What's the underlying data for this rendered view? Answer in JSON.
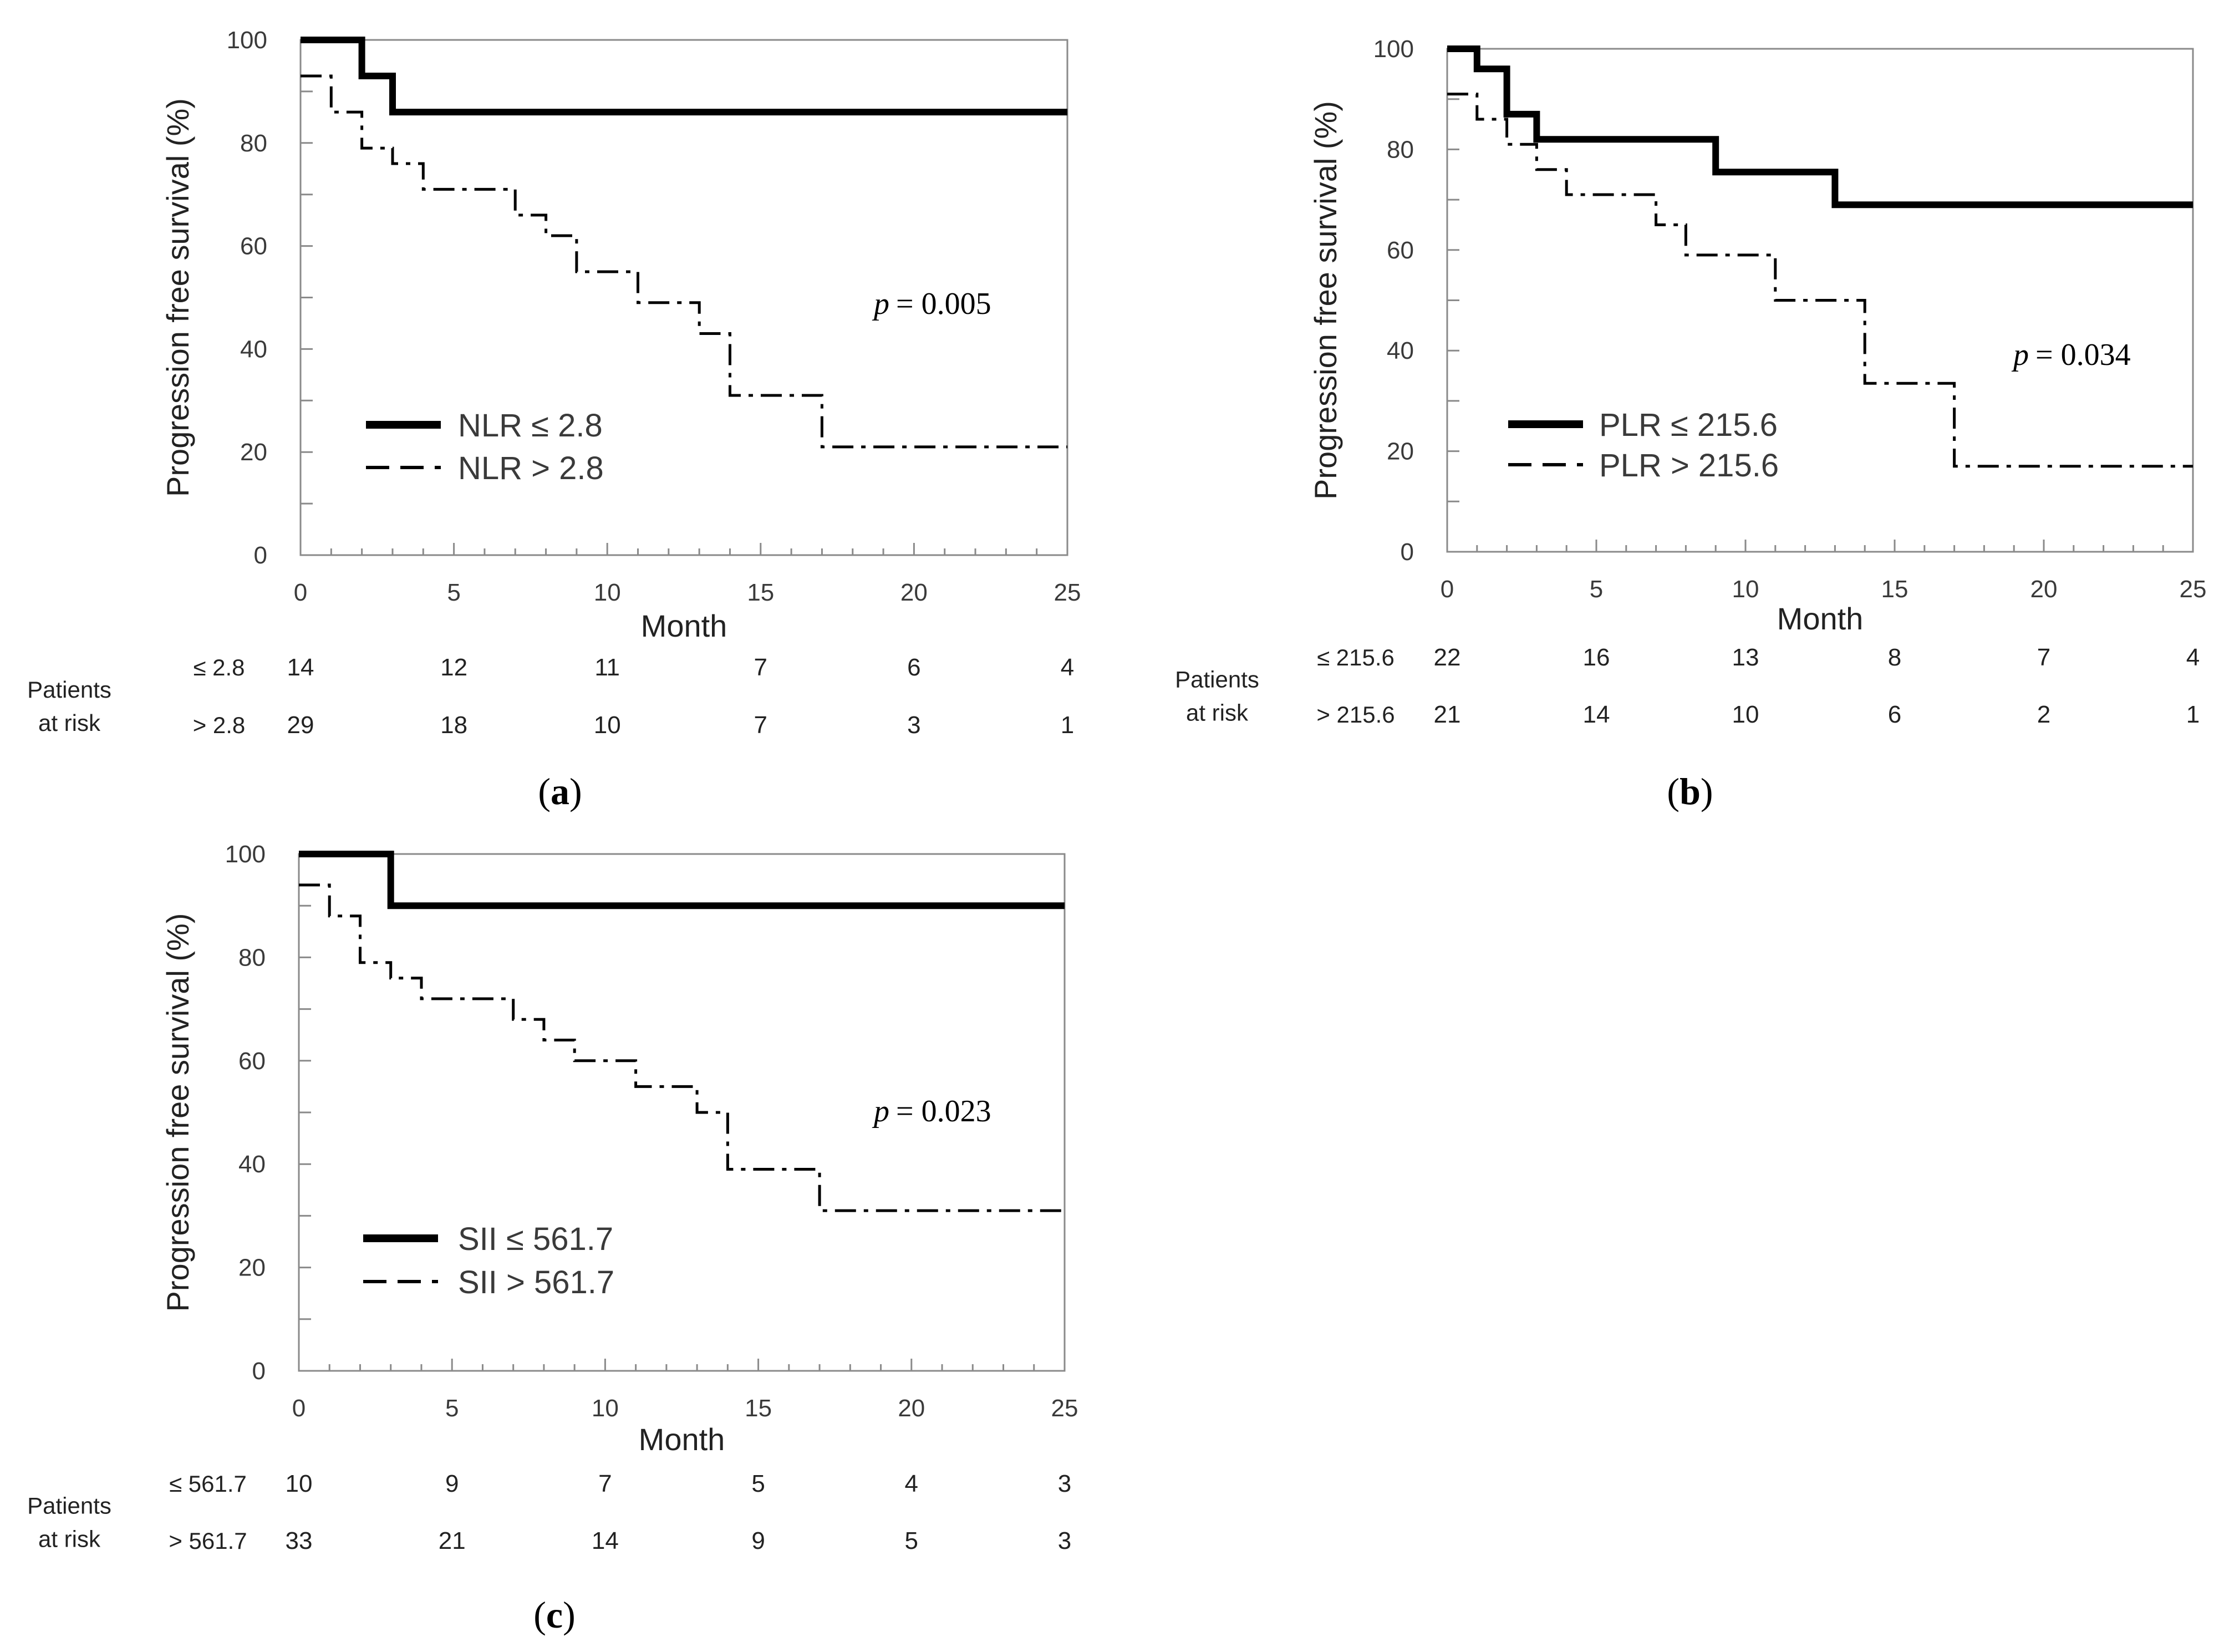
{
  "chart_data": [
    {
      "type": "line",
      "panel_label": "(a)",
      "ylabel": "Progression free survival (%)",
      "xlabel": "Month",
      "xlim": [
        0,
        25
      ],
      "ylim": [
        0,
        100
      ],
      "x_ticks": [
        "0",
        "5",
        "10",
        "15",
        "20",
        "25"
      ],
      "y_ticks": [
        "0",
        "20",
        "40",
        "60",
        "80",
        "100"
      ],
      "p_prefix": "p",
      "p_text": "= 0.005",
      "series": [
        {
          "name": "NLR ≤ 2.8",
          "style": "solid",
          "x": [
            0,
            2,
            2,
            3,
            3,
            25
          ],
          "y": [
            100,
            100,
            93,
            93,
            86,
            86
          ]
        },
        {
          "name": "NLR > 2.8",
          "style": "dashdot",
          "x": [
            0,
            1,
            1,
            2,
            2,
            3,
            3,
            4,
            4,
            7,
            7,
            8,
            8,
            9,
            9,
            11,
            11,
            13,
            13,
            14,
            14,
            17,
            17,
            25
          ],
          "y": [
            93,
            93,
            86,
            86,
            79,
            79,
            76,
            76,
            71,
            71,
            66,
            66,
            62,
            62,
            55,
            55,
            49,
            49,
            43,
            43,
            31,
            31,
            21,
            21
          ]
        }
      ],
      "risk_table": {
        "title_line1": "Patients",
        "title_line2": "at risk",
        "rows": [
          {
            "label": "≤ 2.8",
            "values": [
              "14",
              "12",
              "11",
              "7",
              "6",
              "4"
            ]
          },
          {
            "label": "> 2.8",
            "values": [
              "29",
              "18",
              "10",
              "7",
              "3",
              "1"
            ]
          }
        ]
      }
    },
    {
      "type": "line",
      "panel_label": "(b)",
      "ylabel": "Progression free survival (%)",
      "xlabel": "Month",
      "xlim": [
        0,
        25
      ],
      "ylim": [
        0,
        100
      ],
      "x_ticks": [
        "0",
        "5",
        "10",
        "15",
        "20",
        "25"
      ],
      "y_ticks": [
        "0",
        "20",
        "40",
        "60",
        "80",
        "100"
      ],
      "p_prefix": "p",
      "p_text": "= 0.034",
      "series": [
        {
          "name": "PLR ≤ 215.6",
          "style": "solid",
          "x": [
            0,
            1,
            1,
            2,
            2,
            3,
            3,
            9,
            9,
            13,
            13,
            25
          ],
          "y": [
            100,
            100,
            96,
            96,
            87,
            87,
            82,
            82,
            75.5,
            75.5,
            69,
            69
          ]
        },
        {
          "name": "PLR > 215.6",
          "style": "dashdot",
          "x": [
            0,
            1,
            1,
            2,
            2,
            3,
            3,
            4,
            4,
            7,
            7,
            8,
            8,
            11,
            11,
            14,
            14,
            17,
            17,
            25
          ],
          "y": [
            91,
            91,
            86,
            86,
            81,
            81,
            76,
            76,
            71,
            71,
            65,
            65,
            59,
            59,
            50,
            50,
            33.5,
            33.5,
            17,
            17
          ]
        }
      ],
      "risk_table": {
        "title_line1": "Patients",
        "title_line2": "at risk",
        "rows": [
          {
            "label": "≤ 215.6",
            "values": [
              "22",
              "16",
              "13",
              "8",
              "7",
              "4"
            ]
          },
          {
            "label": "> 215.6",
            "values": [
              "21",
              "14",
              "10",
              "6",
              "2",
              "1"
            ]
          }
        ]
      }
    },
    {
      "type": "line",
      "panel_label": "(c)",
      "ylabel": "Progression free survival (%)",
      "xlabel": "Month",
      "xlim": [
        0,
        25
      ],
      "ylim": [
        0,
        100
      ],
      "x_ticks": [
        "0",
        "5",
        "10",
        "15",
        "20",
        "25"
      ],
      "y_ticks": [
        "0",
        "20",
        "40",
        "60",
        "80",
        "100"
      ],
      "p_prefix": "p",
      "p_text": "= 0.023",
      "series": [
        {
          "name": "SII ≤ 561.7",
          "style": "solid",
          "x": [
            0,
            3,
            3,
            25
          ],
          "y": [
            100,
            100,
            90,
            90
          ]
        },
        {
          "name": "SII > 561.7",
          "style": "dashdot",
          "x": [
            0,
            1,
            1,
            2,
            2,
            3,
            3,
            4,
            4,
            7,
            7,
            8,
            8,
            9,
            9,
            11,
            11,
            13,
            13,
            14,
            14,
            17,
            17,
            25
          ],
          "y": [
            94,
            94,
            88,
            88,
            79,
            79,
            76,
            76,
            72,
            72,
            68,
            68,
            64,
            64,
            60,
            60,
            55,
            55,
            50,
            50,
            39,
            39,
            31,
            31
          ]
        }
      ],
      "risk_table": {
        "title_line1": "Patients",
        "title_line2": "at risk",
        "rows": [
          {
            "label": "≤ 561.7",
            "values": [
              "10",
              "9",
              "7",
              "5",
              "4",
              "3"
            ]
          },
          {
            "label": "> 561.7",
            "values": [
              "33",
              "21",
              "14",
              "9",
              "5",
              "3"
            ]
          }
        ]
      }
    }
  ]
}
